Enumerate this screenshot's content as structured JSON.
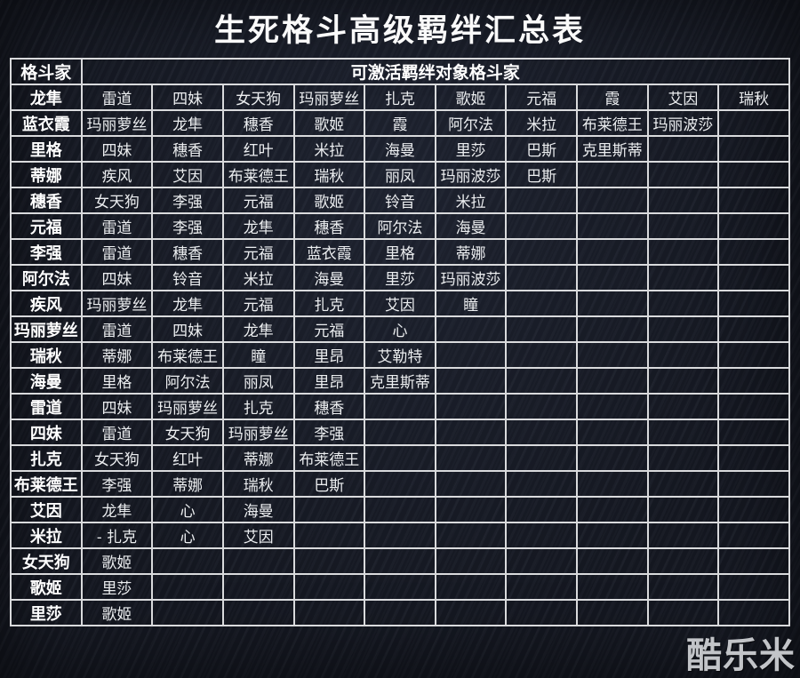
{
  "title": "生死格斗高级羁绊汇总表",
  "watermark": "酷乐米",
  "colors": {
    "background": "#141720",
    "grid": "#d9dadc",
    "text": "#f2f2f2",
    "watermark": "#c2c4c8"
  },
  "chart_data": {
    "type": "table",
    "title": "生死格斗高级羁绊汇总表",
    "header": {
      "fighter": "格斗家",
      "targets": "可激活羁绊对象格斗家"
    },
    "num_target_columns": 10,
    "rows": [
      {
        "fighter": "龙隼",
        "targets": [
          "雷道",
          "四妹",
          "女天狗",
          "玛丽萝丝",
          "扎克",
          "歌姬",
          "元福",
          "霞",
          "艾因",
          "瑞秋"
        ]
      },
      {
        "fighter": "蓝衣霞",
        "targets": [
          "玛丽萝丝",
          "龙隼",
          "穗香",
          "歌姬",
          "霞",
          "阿尔法",
          "米拉",
          "布莱德王",
          "玛丽波莎",
          ""
        ]
      },
      {
        "fighter": "里格",
        "targets": [
          "四妹",
          "穗香",
          "红叶",
          "米拉",
          "海曼",
          "里莎",
          "巴斯",
          "克里斯蒂",
          "",
          ""
        ]
      },
      {
        "fighter": "蒂娜",
        "targets": [
          "疾风",
          "艾因",
          "布莱德王",
          "瑞秋",
          "丽凤",
          "玛丽波莎",
          "巴斯",
          "",
          "",
          ""
        ]
      },
      {
        "fighter": "穗香",
        "targets": [
          "女天狗",
          "李强",
          "元福",
          "歌姬",
          "铃音",
          "米拉",
          "",
          "",
          "",
          ""
        ]
      },
      {
        "fighter": "元福",
        "targets": [
          "雷道",
          "李强",
          "龙隼",
          "穗香",
          "阿尔法",
          "海曼",
          "",
          "",
          "",
          ""
        ]
      },
      {
        "fighter": "李强",
        "targets": [
          "雷道",
          "穗香",
          "元福",
          "蓝衣霞",
          "里格",
          "蒂娜",
          "",
          "",
          "",
          ""
        ]
      },
      {
        "fighter": "阿尔法",
        "targets": [
          "四妹",
          "铃音",
          "米拉",
          "海曼",
          "里莎",
          "玛丽波莎",
          "",
          "",
          "",
          ""
        ]
      },
      {
        "fighter": "疾风",
        "targets": [
          "玛丽萝丝",
          "龙隼",
          "元福",
          "扎克",
          "艾因",
          "瞳",
          "",
          "",
          "",
          ""
        ]
      },
      {
        "fighter": "玛丽萝丝",
        "targets": [
          "雷道",
          "四妹",
          "龙隼",
          "元福",
          "心",
          "",
          "",
          "",
          "",
          ""
        ]
      },
      {
        "fighter": "瑞秋",
        "targets": [
          "蒂娜",
          "布莱德王",
          "瞳",
          "里昂",
          "艾勒特",
          "",
          "",
          "",
          "",
          ""
        ]
      },
      {
        "fighter": "海曼",
        "targets": [
          "里格",
          "阿尔法",
          "丽凤",
          "里昂",
          "克里斯蒂",
          "",
          "",
          "",
          "",
          ""
        ]
      },
      {
        "fighter": "雷道",
        "targets": [
          "四妹",
          "玛丽萝丝",
          "扎克",
          "穗香",
          "",
          "",
          "",
          "",
          "",
          ""
        ]
      },
      {
        "fighter": "四妹",
        "targets": [
          "雷道",
          "女天狗",
          "玛丽萝丝",
          "李强",
          "",
          "",
          "",
          "",
          "",
          ""
        ]
      },
      {
        "fighter": "扎克",
        "targets": [
          "女天狗",
          "红叶",
          "蒂娜",
          "布莱德王",
          "",
          "",
          "",
          "",
          "",
          ""
        ]
      },
      {
        "fighter": "布莱德王",
        "targets": [
          "李强",
          "蒂娜",
          "瑞秋",
          "巴斯",
          "",
          "",
          "",
          "",
          "",
          ""
        ]
      },
      {
        "fighter": "艾因",
        "targets": [
          "龙隼",
          "心",
          "海曼",
          "",
          "",
          "",
          "",
          "",
          "",
          ""
        ]
      },
      {
        "fighter": "米拉",
        "targets": [
          "- 扎克",
          "心",
          "艾因",
          "",
          "",
          "",
          "",
          "",
          "",
          ""
        ]
      },
      {
        "fighter": "女天狗",
        "targets": [
          "歌姬",
          "",
          "",
          "",
          "",
          "",
          "",
          "",
          "",
          ""
        ]
      },
      {
        "fighter": "歌姬",
        "targets": [
          "里莎",
          "",
          "",
          "",
          "",
          "",
          "",
          "",
          "",
          ""
        ]
      },
      {
        "fighter": "里莎",
        "targets": [
          "歌姬",
          "",
          "",
          "",
          "",
          "",
          "",
          "",
          "",
          ""
        ]
      }
    ]
  }
}
